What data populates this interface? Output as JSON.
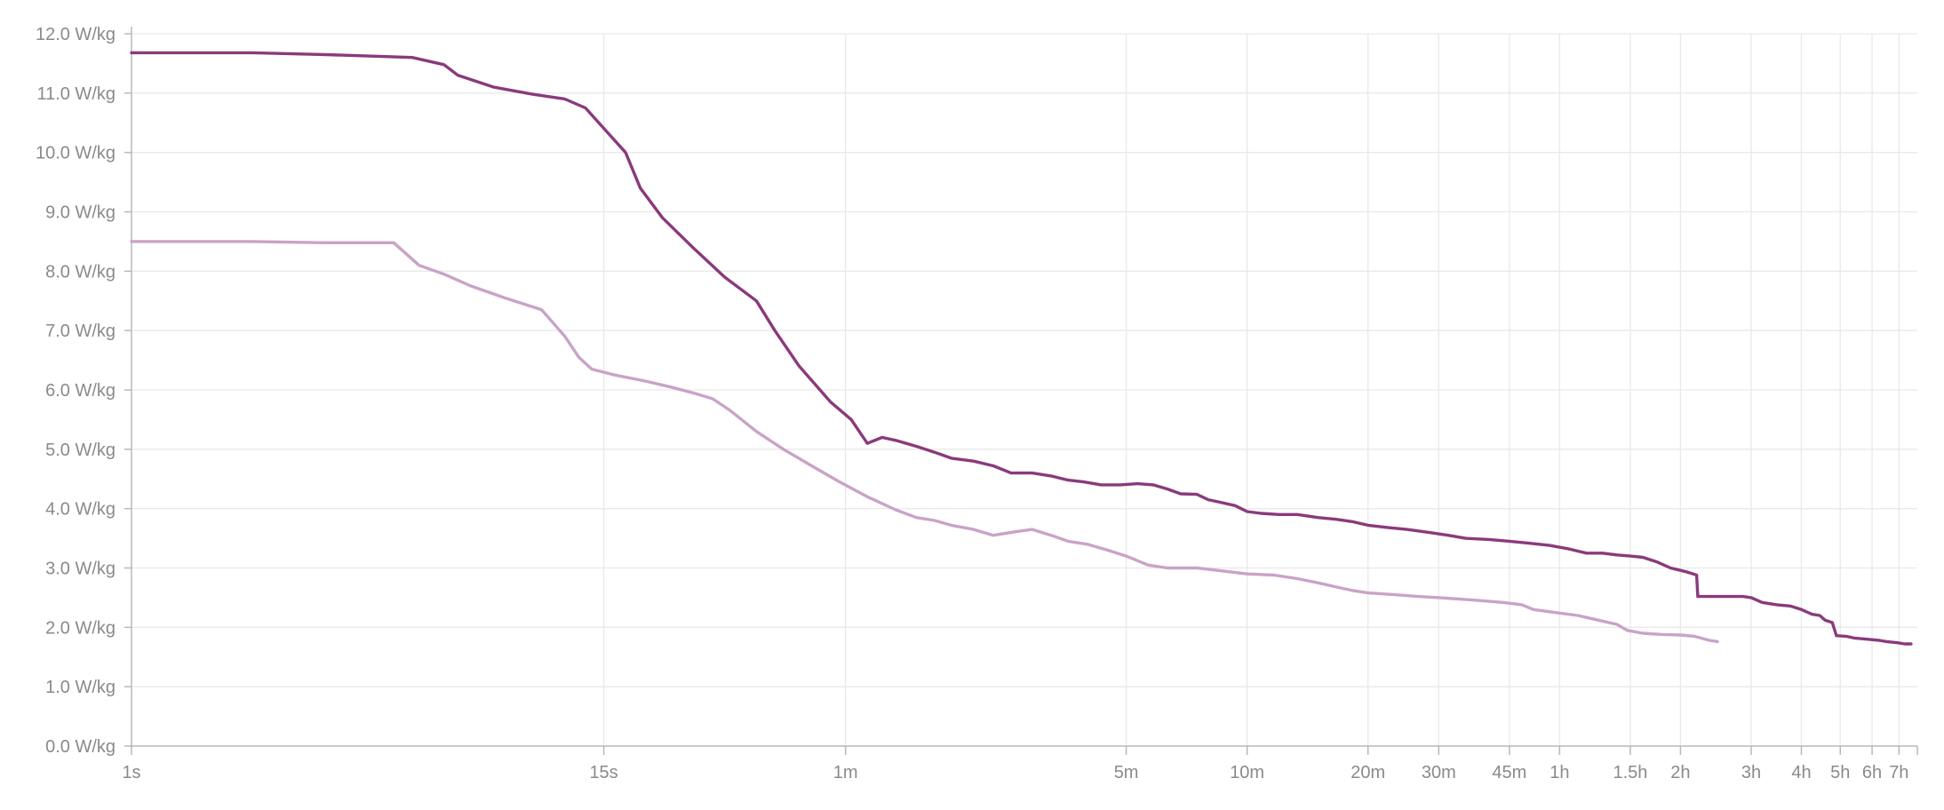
{
  "chart_data": {
    "type": "line",
    "title": "",
    "xlabel": "",
    "ylabel": "",
    "x_scale": "log",
    "x_unit": "seconds",
    "xlim": [
      1,
      28000
    ],
    "ylim": [
      0,
      12
    ],
    "grid": true,
    "y_ticks": [
      {
        "value": 0,
        "label": "0.0 W/kg"
      },
      {
        "value": 1,
        "label": "1.0 W/kg"
      },
      {
        "value": 2,
        "label": "2.0 W/kg"
      },
      {
        "value": 3,
        "label": "3.0 W/kg"
      },
      {
        "value": 4,
        "label": "4.0 W/kg"
      },
      {
        "value": 5,
        "label": "5.0 W/kg"
      },
      {
        "value": 6,
        "label": "6.0 W/kg"
      },
      {
        "value": 7,
        "label": "7.0 W/kg"
      },
      {
        "value": 8,
        "label": "8.0 W/kg"
      },
      {
        "value": 9,
        "label": "9.0 W/kg"
      },
      {
        "value": 10,
        "label": "10.0 W/kg"
      },
      {
        "value": 11,
        "label": "11.0 W/kg"
      },
      {
        "value": 12,
        "label": "12.0 W/kg"
      }
    ],
    "x_ticks": [
      {
        "value": 1,
        "label": "1s"
      },
      {
        "value": 15,
        "label": "15s"
      },
      {
        "value": 60,
        "label": "1m"
      },
      {
        "value": 300,
        "label": "5m"
      },
      {
        "value": 600,
        "label": "10m"
      },
      {
        "value": 1200,
        "label": "20m"
      },
      {
        "value": 1800,
        "label": "30m"
      },
      {
        "value": 2700,
        "label": "45m"
      },
      {
        "value": 3600,
        "label": "1h"
      },
      {
        "value": 5400,
        "label": "1.5h"
      },
      {
        "value": 7200,
        "label": "2h"
      },
      {
        "value": 10800,
        "label": "3h"
      },
      {
        "value": 14400,
        "label": "4h"
      },
      {
        "value": 18000,
        "label": "5h"
      },
      {
        "value": 21600,
        "label": "6h"
      },
      {
        "value": 25200,
        "label": "7h"
      }
    ],
    "series": [
      {
        "color": "#8a3a7c",
        "points": [
          [
            1,
            11.68
          ],
          [
            2,
            11.68
          ],
          [
            3,
            11.65
          ],
          [
            5,
            11.6
          ],
          [
            6,
            11.48
          ],
          [
            6.5,
            11.3
          ],
          [
            8,
            11.1
          ],
          [
            10,
            10.98
          ],
          [
            12,
            10.9
          ],
          [
            13.5,
            10.75
          ],
          [
            15.5,
            10.3
          ],
          [
            17,
            10.0
          ],
          [
            18.5,
            9.4
          ],
          [
            21,
            8.9
          ],
          [
            25,
            8.4
          ],
          [
            30,
            7.9
          ],
          [
            36,
            7.5
          ],
          [
            40,
            7.0
          ],
          [
            46,
            6.4
          ],
          [
            55,
            5.8
          ],
          [
            62,
            5.5
          ],
          [
            68,
            5.1
          ],
          [
            74,
            5.2
          ],
          [
            80,
            5.15
          ],
          [
            90,
            5.05
          ],
          [
            100,
            4.95
          ],
          [
            110,
            4.85
          ],
          [
            125,
            4.8
          ],
          [
            140,
            4.72
          ],
          [
            155,
            4.6
          ],
          [
            175,
            4.6
          ],
          [
            195,
            4.55
          ],
          [
            215,
            4.48
          ],
          [
            235,
            4.45
          ],
          [
            260,
            4.4
          ],
          [
            290,
            4.4
          ],
          [
            320,
            4.42
          ],
          [
            350,
            4.4
          ],
          [
            380,
            4.33
          ],
          [
            410,
            4.25
          ],
          [
            450,
            4.24
          ],
          [
            480,
            4.15
          ],
          [
            520,
            4.1
          ],
          [
            560,
            4.05
          ],
          [
            600,
            3.95
          ],
          [
            650,
            3.92
          ],
          [
            720,
            3.9
          ],
          [
            800,
            3.9
          ],
          [
            900,
            3.85
          ],
          [
            1000,
            3.82
          ],
          [
            1100,
            3.78
          ],
          [
            1200,
            3.72
          ],
          [
            1350,
            3.68
          ],
          [
            1500,
            3.65
          ],
          [
            1700,
            3.6
          ],
          [
            1900,
            3.55
          ],
          [
            2100,
            3.5
          ],
          [
            2400,
            3.48
          ],
          [
            2700,
            3.45
          ],
          [
            3000,
            3.42
          ],
          [
            3400,
            3.38
          ],
          [
            3800,
            3.32
          ],
          [
            4200,
            3.25
          ],
          [
            4600,
            3.25
          ],
          [
            5000,
            3.22
          ],
          [
            5400,
            3.2
          ],
          [
            5800,
            3.18
          ],
          [
            6300,
            3.1
          ],
          [
            6800,
            3.0
          ],
          [
            7200,
            2.96
          ],
          [
            7500,
            2.93
          ],
          [
            7900,
            2.88
          ],
          [
            7950,
            2.52
          ],
          [
            8600,
            2.52
          ],
          [
            9500,
            2.52
          ],
          [
            10300,
            2.52
          ],
          [
            10800,
            2.5
          ],
          [
            11500,
            2.42
          ],
          [
            12500,
            2.38
          ],
          [
            13500,
            2.36
          ],
          [
            14400,
            2.3
          ],
          [
            15300,
            2.22
          ],
          [
            16000,
            2.2
          ],
          [
            16500,
            2.12
          ],
          [
            17200,
            2.08
          ],
          [
            17600,
            1.86
          ],
          [
            18600,
            1.85
          ],
          [
            19500,
            1.82
          ],
          [
            21000,
            1.8
          ],
          [
            22500,
            1.78
          ],
          [
            23500,
            1.76
          ],
          [
            25000,
            1.74
          ],
          [
            26000,
            1.72
          ],
          [
            27000,
            1.72
          ]
        ]
      },
      {
        "color": "#c9a3c7",
        "points": [
          [
            1,
            8.5
          ],
          [
            2,
            8.5
          ],
          [
            3,
            8.48
          ],
          [
            4.5,
            8.48
          ],
          [
            5.2,
            8.1
          ],
          [
            6,
            7.95
          ],
          [
            7,
            7.75
          ],
          [
            8.5,
            7.55
          ],
          [
            10.5,
            7.35
          ],
          [
            12,
            6.9
          ],
          [
            13,
            6.55
          ],
          [
            14,
            6.35
          ],
          [
            16,
            6.25
          ],
          [
            19,
            6.15
          ],
          [
            22,
            6.05
          ],
          [
            25,
            5.95
          ],
          [
            28,
            5.85
          ],
          [
            31,
            5.65
          ],
          [
            36,
            5.3
          ],
          [
            42,
            5.0
          ],
          [
            50,
            4.7
          ],
          [
            58,
            4.45
          ],
          [
            68,
            4.2
          ],
          [
            80,
            3.98
          ],
          [
            90,
            3.85
          ],
          [
            100,
            3.8
          ],
          [
            110,
            3.72
          ],
          [
            125,
            3.65
          ],
          [
            140,
            3.55
          ],
          [
            155,
            3.6
          ],
          [
            175,
            3.65
          ],
          [
            195,
            3.55
          ],
          [
            215,
            3.45
          ],
          [
            240,
            3.4
          ],
          [
            270,
            3.3
          ],
          [
            300,
            3.2
          ],
          [
            340,
            3.05
          ],
          [
            380,
            3.0
          ],
          [
            450,
            3.0
          ],
          [
            520,
            2.95
          ],
          [
            600,
            2.9
          ],
          [
            700,
            2.88
          ],
          [
            800,
            2.82
          ],
          [
            900,
            2.75
          ],
          [
            1000,
            2.68
          ],
          [
            1100,
            2.62
          ],
          [
            1200,
            2.58
          ],
          [
            1400,
            2.55
          ],
          [
            1600,
            2.52
          ],
          [
            1800,
            2.5
          ],
          [
            2000,
            2.48
          ],
          [
            2300,
            2.45
          ],
          [
            2600,
            2.42
          ],
          [
            2900,
            2.38
          ],
          [
            3100,
            2.3
          ],
          [
            3500,
            2.25
          ],
          [
            4000,
            2.2
          ],
          [
            4500,
            2.12
          ],
          [
            5000,
            2.05
          ],
          [
            5300,
            1.95
          ],
          [
            5800,
            1.9
          ],
          [
            6500,
            1.88
          ],
          [
            7200,
            1.87
          ],
          [
            7800,
            1.85
          ],
          [
            8500,
            1.78
          ],
          [
            8900,
            1.76
          ]
        ]
      }
    ]
  }
}
